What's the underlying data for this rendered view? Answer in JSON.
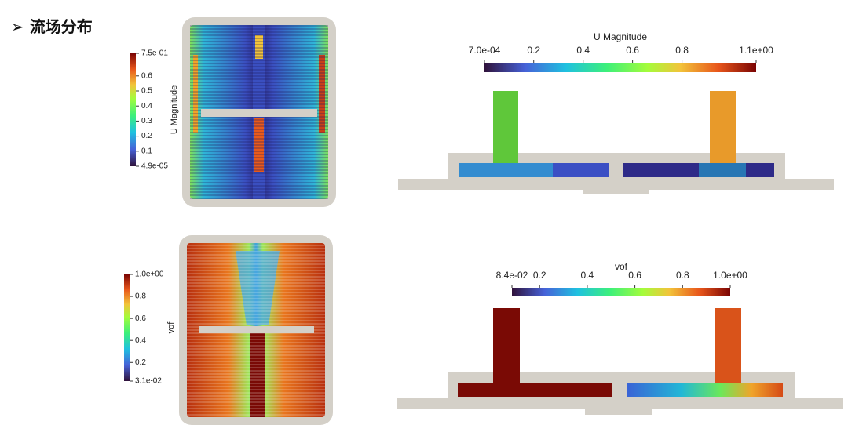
{
  "header": {
    "title": "流场分布"
  },
  "colorbars": [
    {
      "title": "U Magnitude",
      "lim": [
        4.9e-05,
        0.75
      ],
      "ticks": [
        {
          "value": 0.75,
          "label": "7.5e-01"
        },
        0.6,
        0.5,
        0.4,
        0.3,
        0.2,
        0.1,
        {
          "value": 4.9e-05,
          "label": "4.9e-05"
        }
      ]
    },
    {
      "title": "U Magnitude",
      "lim": [
        0.0007,
        1.1
      ],
      "ticks": [
        {
          "value": 0.0007,
          "label": "7.0e-04"
        },
        0.2,
        0.4,
        0.6,
        0.8,
        {
          "value": 1.1,
          "label": "1.1e+00"
        }
      ]
    },
    {
      "title": "vof",
      "lim": [
        0.031,
        1.0
      ],
      "ticks": [
        {
          "value": 1.0,
          "label": "1.0e+00"
        },
        0.8,
        0.6,
        0.4,
        0.2,
        {
          "value": 0.031,
          "label": "3.1e-02"
        }
      ]
    },
    {
      "title": "vof",
      "lim": [
        0.084,
        1.0
      ],
      "ticks": [
        {
          "value": 0.084,
          "label": "8.4e-02"
        },
        0.2,
        0.4,
        0.6,
        0.8,
        {
          "value": 1.0,
          "label": "1.0e+00"
        }
      ]
    }
  ]
}
